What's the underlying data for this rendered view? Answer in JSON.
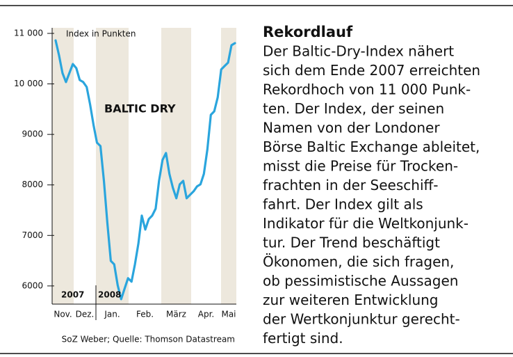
{
  "chart_data": {
    "type": "line",
    "ylabel": "Index in Punkten",
    "xlabels": [
      "Nov.",
      "Dez.",
      "Jan.",
      "Feb.",
      "März",
      "Apr.",
      "Mai"
    ],
    "years": [
      "2007",
      "2008"
    ],
    "series": [
      {
        "name": "BALTIC DRY",
        "color": "#2aa5dd",
        "values": [
          10862,
          10560,
          10215,
          10036,
          10215,
          10394,
          10311,
          10077,
          10036,
          9939,
          9595,
          9182,
          8837,
          8769,
          8080,
          7253,
          6496,
          6427,
          6014,
          5738,
          5945,
          6152,
          6083,
          6427,
          6840,
          7391,
          7116,
          7322,
          7391,
          7529,
          8080,
          8493,
          8631,
          8218,
          7942,
          7736,
          8011,
          8080,
          7736,
          7805,
          7873,
          7970,
          8011,
          8218,
          8700,
          9388,
          9457,
          9733,
          10284,
          10353,
          10421,
          10766,
          10807
        ]
      }
    ],
    "ylim": [
      5640,
      11110
    ],
    "yticks": [
      {
        "value": 11000,
        "label": "11 000"
      },
      {
        "value": 10000,
        "label": "10 000"
      },
      9000,
      8000,
      7000,
      6000
    ],
    "source": "SoZ Weber; Quelle: Thomson Datastream"
  },
  "article": {
    "title": "Rekordlauf",
    "lines": [
      "Der Baltic-Dry-Index nähert",
      "sich dem Ende 2007 erreichten",
      "Rekordhoch von 11 000 Punk-",
      "ten. Der Index, der seinen",
      "Namen von der Londoner",
      "Börse Baltic Exchange ableitet,",
      "misst die Preise für Trocken-",
      "frachten in der Seeschiff-",
      "fahrt. Der Index gilt als",
      "Indikator für die Weltkonjunk-",
      "tur. Der Trend beschäftigt",
      "Ökonomen, die sich fragen,",
      "ob pessimistische Aussagen",
      "zur weiteren Entwicklung",
      "der Wertkonjunktur gerecht-",
      "fertigt sind."
    ]
  }
}
